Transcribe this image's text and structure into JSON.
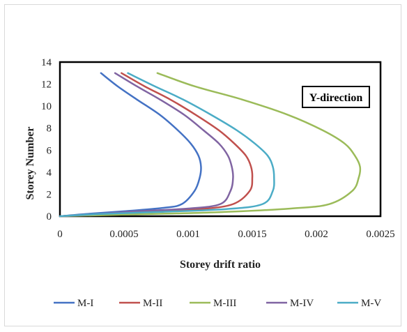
{
  "chart_data": {
    "type": "line",
    "annotation": "Y-direction",
    "xlabel": "Storey drift ratio",
    "ylabel": "Storey Number",
    "xlim": [
      0,
      0.0025
    ],
    "ylim": [
      0,
      14
    ],
    "xticks": [
      0,
      0.0005,
      0.001,
      0.0015,
      0.002,
      0.0025
    ],
    "xtick_labels": [
      "0",
      "0.0005",
      "0.001",
      "0.0015",
      "0.002",
      "0.0025"
    ],
    "yticks": [
      0,
      2,
      4,
      6,
      8,
      10,
      12,
      14
    ],
    "ytick_labels": [
      "0",
      "2",
      "4",
      "6",
      "8",
      "10",
      "12",
      "14"
    ],
    "grid": false,
    "legend_position": "bottom",
    "series": [
      {
        "name": "M-I",
        "color": "#4472C4",
        "x": [
          0,
          0.0002,
          0.0005,
          0.0008,
          0.00095,
          0.00105,
          0.00109,
          0.0011,
          0.00108,
          0.00102,
          0.00092,
          0.00078,
          0.0006,
          0.00045,
          0.00032
        ],
        "y": [
          0,
          0.2,
          0.45,
          0.75,
          1.1,
          2.3,
          3.5,
          4.5,
          5.5,
          6.6,
          7.8,
          9.2,
          10.6,
          11.8,
          13
        ]
      },
      {
        "name": "M-II",
        "color": "#C0504D",
        "x": [
          0,
          0.0003,
          0.0007,
          0.0011,
          0.00135,
          0.00148,
          0.0015,
          0.00149,
          0.00145,
          0.00136,
          0.00124,
          0.00106,
          0.00086,
          0.00066,
          0.00048
        ],
        "y": [
          0,
          0.2,
          0.4,
          0.65,
          1.1,
          2.3,
          3.5,
          4.5,
          5.5,
          6.6,
          7.8,
          9.2,
          10.6,
          11.8,
          13
        ]
      },
      {
        "name": "M-III",
        "color": "#9BBB59",
        "x": [
          0,
          0.0005,
          0.0012,
          0.0018,
          0.0021,
          0.00228,
          0.00233,
          0.00234,
          0.0023,
          0.00222,
          0.00205,
          0.00178,
          0.00142,
          0.00105,
          0.00076
        ],
        "y": [
          0,
          0.15,
          0.35,
          0.7,
          1.1,
          2.3,
          3.5,
          4.5,
          5.5,
          6.6,
          7.8,
          9.2,
          10.6,
          11.8,
          13
        ]
      },
      {
        "name": "M-IV",
        "color": "#8064A2",
        "x": [
          0,
          0.0003,
          0.0006,
          0.001,
          0.00125,
          0.00133,
          0.00135,
          0.00134,
          0.00131,
          0.00124,
          0.00112,
          0.00097,
          0.00078,
          0.0006,
          0.00043
        ],
        "y": [
          0,
          0.2,
          0.45,
          0.7,
          1.1,
          2.3,
          3.5,
          4.5,
          5.5,
          6.6,
          7.8,
          9.2,
          10.6,
          11.8,
          13
        ]
      },
      {
        "name": "M-V",
        "color": "#4BACC6",
        "x": [
          0,
          0.0003,
          0.0008,
          0.0013,
          0.00158,
          0.00166,
          0.00167,
          0.00166,
          0.00162,
          0.00152,
          0.00138,
          0.00118,
          0.00096,
          0.00074,
          0.00053
        ],
        "y": [
          0,
          0.2,
          0.4,
          0.65,
          1.1,
          2.3,
          3.5,
          4.5,
          5.5,
          6.6,
          7.8,
          9.2,
          10.6,
          11.8,
          13
        ]
      }
    ]
  }
}
